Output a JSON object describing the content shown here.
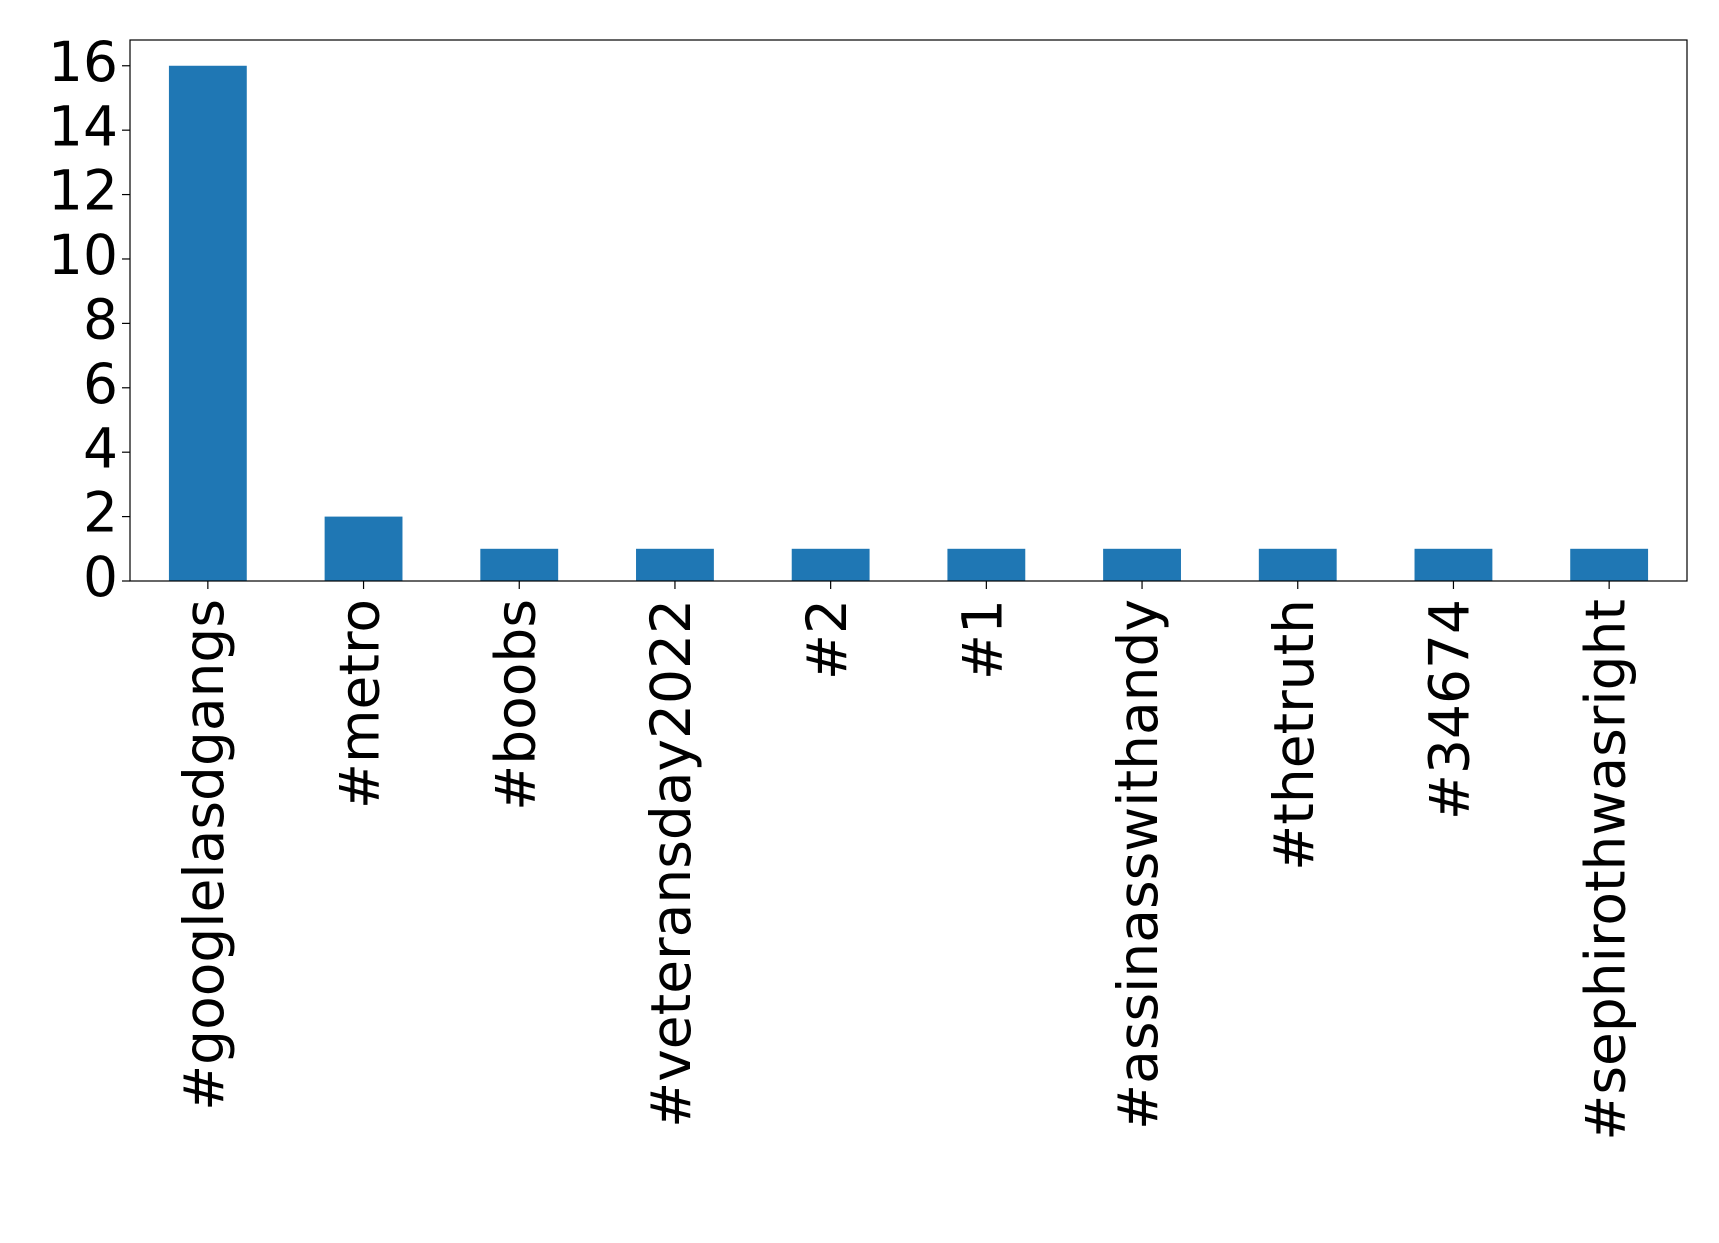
{
  "chart_data": {
    "type": "bar",
    "categories": [
      "#googlelasdgangs",
      "#metro",
      "#boobs",
      "#veteransday2022",
      "#2",
      "#1",
      "#assinasswithandy",
      "#thetruth",
      "#34674",
      "#sephirothwasright"
    ],
    "values": [
      16,
      2,
      1,
      1,
      1,
      1,
      1,
      1,
      1,
      1
    ],
    "color": "#1f77b4",
    "ylim": [
      0,
      16.8
    ],
    "yticks": [
      0,
      2,
      4,
      6,
      8,
      10,
      12,
      14,
      16
    ],
    "grid": false
  }
}
